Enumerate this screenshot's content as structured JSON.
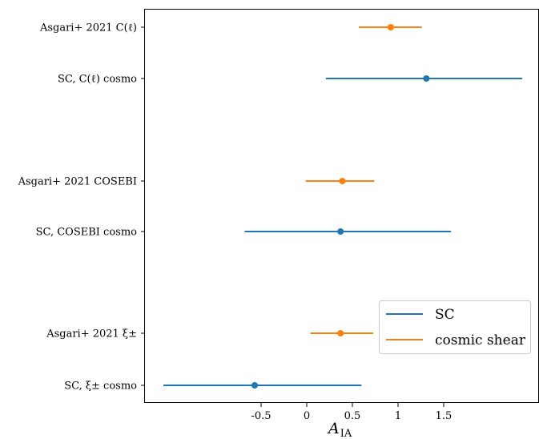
{
  "chart_data": {
    "type": "errorbar",
    "title": "",
    "xlabel": "A",
    "xlabel_subscript": "IA",
    "xlim": [
      -2.25,
      2.55
    ],
    "xticks": [
      -0.5,
      0,
      0.5,
      1,
      1.5
    ],
    "xtick_labels": [
      "-0.5",
      "0",
      "0.5",
      "1",
      "1.5"
    ],
    "grid": false,
    "legend_position": "lower-right",
    "colors": {
      "SC": "#1f77b4",
      "cosmic shear": "#ff7f0e"
    },
    "legend": [
      {
        "name": "SC",
        "color": "#1f77b4"
      },
      {
        "name": "cosmic shear",
        "color": "#ff7f0e"
      }
    ],
    "rows": [
      {
        "label": "Asgari+ 2021 C(ℓ)",
        "series": "cosmic shear",
        "value": 0.92,
        "low": 0.57,
        "high": 1.26
      },
      {
        "label": "SC, C(ℓ) cosmo",
        "series": "SC",
        "value": 1.31,
        "low": 0.21,
        "high": 2.36
      },
      {
        "label": "Asgari+ 2021 COSEBI",
        "series": "cosmic shear",
        "value": 0.39,
        "low": -0.01,
        "high": 0.74
      },
      {
        "label": "SC, COSEBI cosmo",
        "series": "SC",
        "value": 0.37,
        "low": -0.68,
        "high": 1.58
      },
      {
        "label": "Asgari+ 2021 ξ±",
        "series": "cosmic shear",
        "value": 0.37,
        "low": 0.04,
        "high": 0.73
      },
      {
        "label": "SC, ξ± cosmo",
        "series": "SC",
        "value": -0.57,
        "low": -1.57,
        "high": 0.6
      }
    ]
  }
}
